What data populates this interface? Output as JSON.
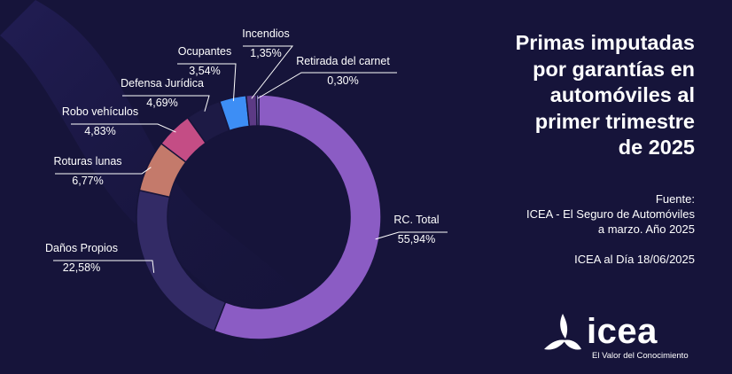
{
  "title_lines": [
    "Primas imputadas",
    "por garantías en",
    "automóviles al",
    "primer trimestre",
    "de 2025"
  ],
  "source_lines": [
    "Fuente:",
    "ICEA - El Seguro de Automóviles",
    "a marzo. Año 2025"
  ],
  "date_text": "ICEA al Día 18/06/2025",
  "logo": {
    "name": "icea",
    "tagline": "El Valor del Conocimiento"
  },
  "colors": {
    "background": "#16143a",
    "rc_total": "#8b5cc4",
    "danos_propios": "#332b66",
    "roturas_lunas": "#c47a6b",
    "robo_vehiculos": "#c44d85",
    "defensa_juridica": "#1d1a45",
    "ocupantes": "#3d8ef5",
    "incendios": "#5c3a85",
    "retirada_carnet": "#a08de0"
  },
  "chart_data": {
    "type": "pie",
    "donut": true,
    "title": "Primas imputadas por garantías en automóviles al primer trimestre de 2025",
    "slices": [
      {
        "name": "RC. Total",
        "value": 55.94,
        "label": "55,94%",
        "color_key": "rc_total"
      },
      {
        "name": "Daños Propios",
        "value": 22.58,
        "label": "22,58%",
        "color_key": "danos_propios"
      },
      {
        "name": "Roturas lunas",
        "value": 6.77,
        "label": "6,77%",
        "color_key": "roturas_lunas"
      },
      {
        "name": "Robo vehículos",
        "value": 4.83,
        "label": "4,83%",
        "color_key": "robo_vehiculos"
      },
      {
        "name": "Defensa Jurídica",
        "value": 4.69,
        "label": "4,69%",
        "color_key": "defensa_juridica"
      },
      {
        "name": "Ocupantes",
        "value": 3.54,
        "label": "3,54%",
        "color_key": "ocupantes"
      },
      {
        "name": "Incendios",
        "value": 1.35,
        "label": "1,35%",
        "color_key": "incendios"
      },
      {
        "name": "Retirada del carnet",
        "value": 0.3,
        "label": "0,30%",
        "color_key": "retirada_carnet"
      }
    ]
  }
}
